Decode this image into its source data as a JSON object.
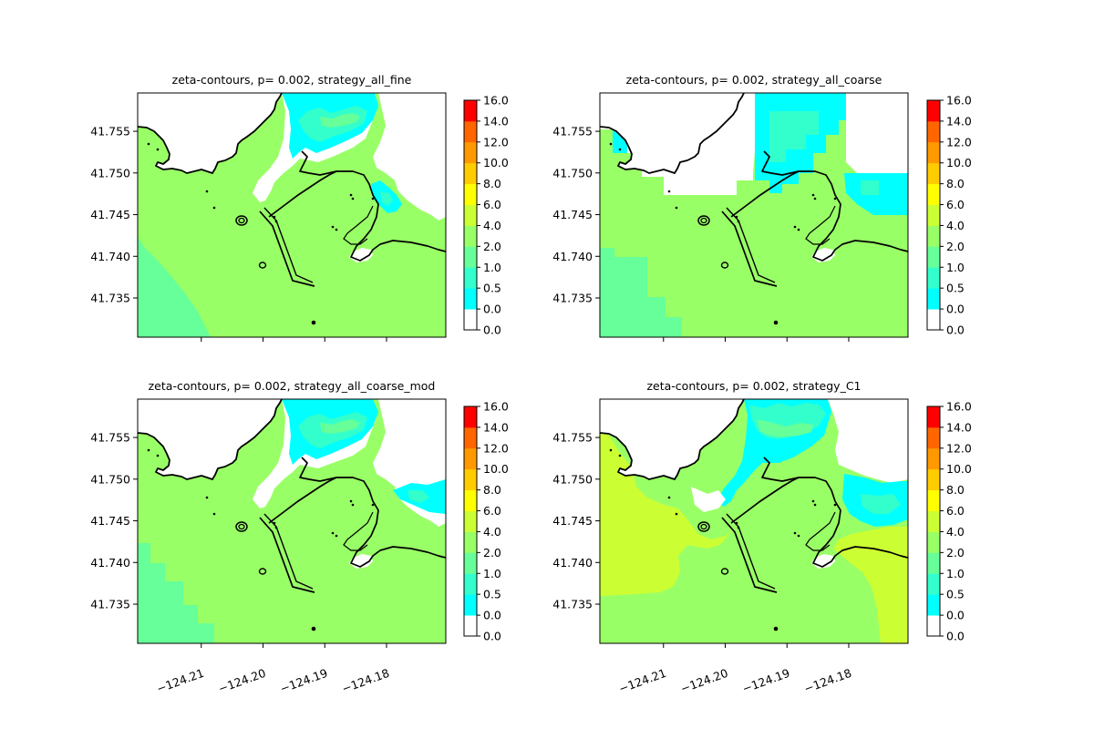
{
  "colors": {
    "background": "#ffffff",
    "land": "#ffffff",
    "coastline": "#000000"
  },
  "colorbar": {
    "tick_labels": [
      "0.0",
      "0.0",
      "0.5",
      "1.0",
      "2.0",
      "4.0",
      "6.0",
      "8.0",
      "10.0",
      "12.0",
      "14.0",
      "16.0"
    ],
    "bands": [
      {
        "from": 0.0,
        "to": 0.0,
        "color": "#ffffff"
      },
      {
        "from": 0.0,
        "to": 0.5,
        "color": "#00ffff"
      },
      {
        "from": 0.5,
        "to": 1.0,
        "color": "#33ffcc"
      },
      {
        "from": 1.0,
        "to": 2.0,
        "color": "#66ff99"
      },
      {
        "from": 2.0,
        "to": 4.0,
        "color": "#99ff66"
      },
      {
        "from": 4.0,
        "to": 6.0,
        "color": "#ccff33"
      },
      {
        "from": 6.0,
        "to": 8.0,
        "color": "#ffff00"
      },
      {
        "from": 8.0,
        "to": 10.0,
        "color": "#ffcc00"
      },
      {
        "from": 10.0,
        "to": 12.0,
        "color": "#ff9900"
      },
      {
        "from": 12.0,
        "to": 14.0,
        "color": "#ff6600"
      },
      {
        "from": 14.0,
        "to": 16.0,
        "color": "#ff0000"
      }
    ]
  },
  "chart_data": [
    {
      "type": "heatmap",
      "title": "zeta-contours, p= 0.002, strategy_all_fine",
      "xlim": [
        -124.2203,
        -124.1704
      ],
      "ylim": [
        41.7303,
        41.7596
      ],
      "xticks": [
        -124.21,
        -124.2,
        -124.19,
        -124.18
      ],
      "xtick_labels": [],
      "yticks": [
        41.735,
        41.74,
        41.745,
        41.75,
        41.755
      ],
      "ytick_labels": [
        "41.735",
        "41.740",
        "41.745",
        "41.750",
        "41.755"
      ],
      "dominant_level": "2.0–4.0"
    },
    {
      "type": "heatmap",
      "title": "zeta-contours, p= 0.002, strategy_all_coarse",
      "xlim": [
        -124.2203,
        -124.1704
      ],
      "ylim": [
        41.7303,
        41.7596
      ],
      "xticks": [
        -124.21,
        -124.2,
        -124.19,
        -124.18
      ],
      "xtick_labels": [],
      "yticks": [
        41.735,
        41.74,
        41.745,
        41.75,
        41.755
      ],
      "ytick_labels": [
        "41.735",
        "41.740",
        "41.745",
        "41.750",
        "41.755"
      ],
      "dominant_level": "2.0–4.0"
    },
    {
      "type": "heatmap",
      "title": "zeta-contours, p= 0.002, strategy_all_coarse_mod",
      "xlim": [
        -124.2203,
        -124.1704
      ],
      "ylim": [
        41.7303,
        41.7596
      ],
      "xticks": [
        -124.21,
        -124.2,
        -124.19,
        -124.18
      ],
      "xtick_labels": [
        "−124.21",
        "−124.20",
        "−124.19",
        "−124.18"
      ],
      "yticks": [
        41.735,
        41.74,
        41.745,
        41.75,
        41.755
      ],
      "ytick_labels": [
        "41.735",
        "41.740",
        "41.745",
        "41.750",
        "41.755"
      ],
      "dominant_level": "2.0–4.0"
    },
    {
      "type": "heatmap",
      "title": "zeta-contours, p= 0.002, strategy_C1",
      "xlim": [
        -124.2203,
        -124.1704
      ],
      "ylim": [
        41.7303,
        41.7596
      ],
      "xticks": [
        -124.21,
        -124.2,
        -124.19,
        -124.18
      ],
      "xtick_labels": [
        "−124.21",
        "−124.20",
        "−124.19",
        "−124.18"
      ],
      "yticks": [
        41.735,
        41.74,
        41.745,
        41.75,
        41.755
      ],
      "ytick_labels": [
        "41.735",
        "41.740",
        "41.745",
        "41.750",
        "41.755"
      ],
      "dominant_level": "2.0–4.0"
    }
  ]
}
